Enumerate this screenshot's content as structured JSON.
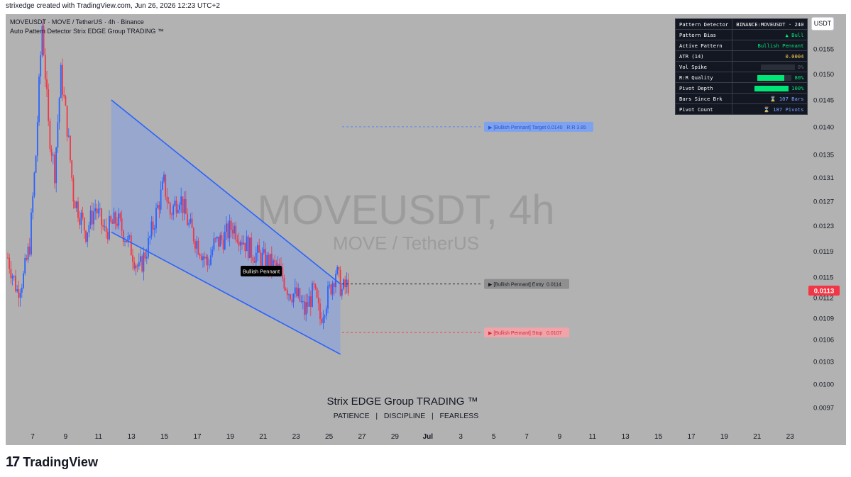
{
  "header": {
    "created_by": "strixedge created with TradingView.com, Jun 26, 2026 12:23 UTC+2"
  },
  "legend": {
    "line1": "MOVEUSDT · MOVE / TetherUS · 4h · Binance",
    "line2": "Auto Pattern Detector Strix EDGE Group TRADING ™"
  },
  "watermark": {
    "symbol": "MOVEUSDT, 4h",
    "pair": "MOVE / TetherUS"
  },
  "branding": {
    "title": "Strix EDGE Group TRADING ™",
    "tagline": "PATIENCE   |   DISCIPLINE   |   FEARLESS"
  },
  "currency_button": "USDT",
  "footer": {
    "logo": "17",
    "name": "TradingView"
  },
  "panel": {
    "rows": [
      {
        "label": "Pattern Detector",
        "value": "BINANCE:MOVEUSDT · 240",
        "color": "#ffffff"
      },
      {
        "label": "Pattern Bias",
        "value": "▲ Bull",
        "color": "#00e676"
      },
      {
        "label": "Active Pattern",
        "value": "Bullish Pennant",
        "color": "#00e676"
      },
      {
        "label": "ATR (14)",
        "value": "0.0004",
        "color": "#ffd54f"
      },
      {
        "label": "Vol Spike",
        "value": "0%",
        "color": "#5d606b",
        "fill": 0
      },
      {
        "label": "R:R Quality",
        "value": "80%",
        "color": "#00e676",
        "fill": 0.8
      },
      {
        "label": "Pivot Depth",
        "value": "100%",
        "color": "#00e676",
        "fill": 1
      },
      {
        "label": "Bars Since Brk",
        "value": "⌛ 107 Bars",
        "color": "#7aa2ff"
      },
      {
        "label": "Pivot Count",
        "value": "⌛ 187 Pivots",
        "color": "#7aa2ff"
      }
    ]
  },
  "chart_data": {
    "type": "candlestick",
    "x_axis": {
      "tick_labels": [
        "7",
        "9",
        "11",
        "13",
        "15",
        "17",
        "19",
        "21",
        "23",
        "25",
        "27",
        "29",
        "Jul",
        "3",
        "5",
        "7",
        "9",
        "11",
        "13",
        "15",
        "17",
        "19",
        "21",
        "23"
      ]
    },
    "y_axis": {
      "tick_labels": [
        "0.0155",
        "0.0150",
        "0.0145",
        "0.0140",
        "0.0135",
        "0.0131",
        "0.0127",
        "0.0123",
        "0.0119",
        "0.0115",
        "0.0112",
        "0.0109",
        "0.0106",
        "0.0103",
        "0.0100",
        "0.0097"
      ],
      "scale": "log"
    },
    "last_price": {
      "value": "0.0113",
      "color": "#f23645"
    },
    "pattern": {
      "name": "Bullish Pennant",
      "label": "Bullish Pennant",
      "upper_line": {
        "from": {
          "x": "Jun 11",
          "y": 0.0145
        },
        "to": {
          "x": "Jun 25",
          "y": 0.0114
        }
      },
      "lower_line": {
        "from": {
          "x": "Jun 11",
          "y": 0.0122
        },
        "to": {
          "x": "Jun 25",
          "y": 0.0104
        }
      },
      "fill_color": "#8ea3d6",
      "line_color": "#2962ff"
    },
    "levels": [
      {
        "name": "target",
        "label": "▶ [Bullish Pennant] Target 0.0140   R:R 3.85",
        "price": 0.014,
        "color": "#5b8def"
      },
      {
        "name": "entry",
        "label": "▶ [Bullish Pennant] Entry  0.0114",
        "price": 0.0114,
        "color": "#131722"
      },
      {
        "name": "stop",
        "label": "▶ [Bullish Pennant] Stop   0.0107",
        "price": 0.0107,
        "color": "#f23645"
      }
    ],
    "up_color": "#2962ff",
    "down_color": "#f23645"
  }
}
